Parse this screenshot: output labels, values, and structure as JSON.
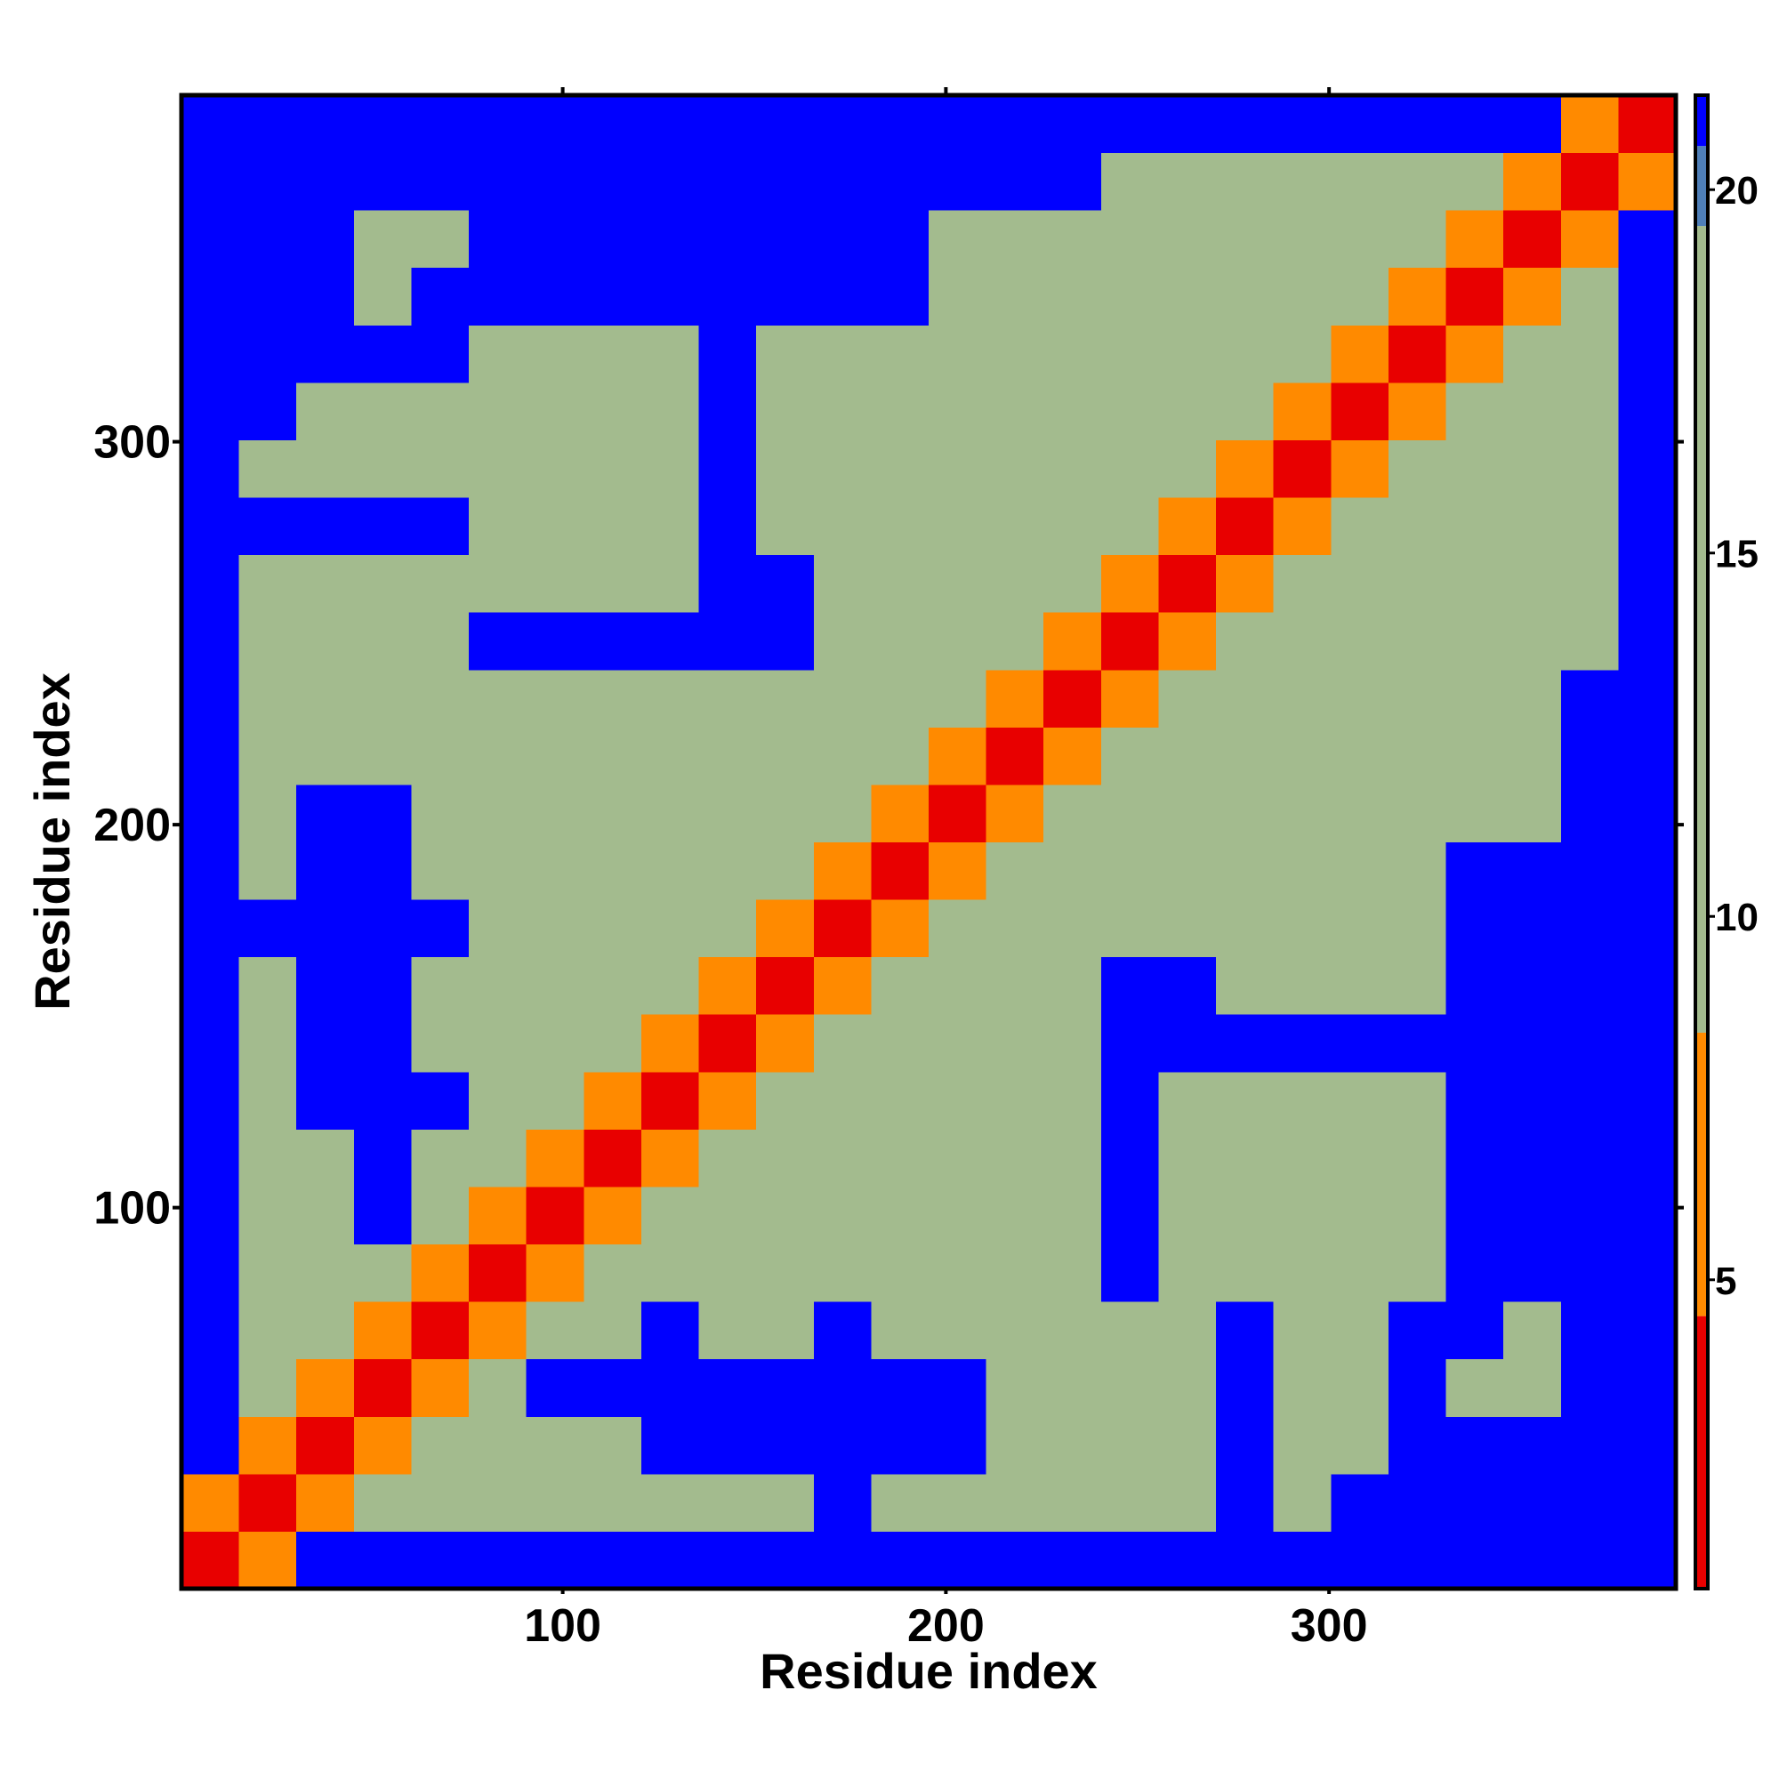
{
  "chart_data": {
    "type": "heatmap",
    "xlabel": "Residue index",
    "ylabel": "Residue index",
    "x": [
      8,
      23,
      38,
      53,
      68,
      83,
      98,
      113,
      128,
      143,
      158,
      173,
      188,
      203,
      218,
      233,
      248,
      263,
      278,
      293,
      308,
      323,
      338,
      353,
      368,
      383
    ],
    "y": [
      8,
      23,
      38,
      53,
      68,
      83,
      98,
      113,
      128,
      143,
      158,
      173,
      188,
      203,
      218,
      233,
      248,
      263,
      278,
      293,
      308,
      323,
      338,
      353,
      368,
      383
    ],
    "values": [
      [
        3,
        7,
        21,
        21,
        21,
        21,
        21,
        21,
        21,
        21,
        21,
        21,
        21,
        21,
        21,
        21,
        21,
        21,
        21,
        21,
        21,
        21,
        21,
        21,
        21,
        21
      ],
      [
        7,
        3,
        7,
        12,
        12,
        12,
        12,
        12,
        12,
        12,
        12,
        21,
        18,
        18,
        12,
        12,
        12,
        12,
        21,
        18,
        21,
        21,
        21,
        21,
        21,
        21
      ],
      [
        21,
        7,
        3,
        7,
        12,
        12,
        12,
        12,
        21,
        21,
        21,
        21,
        21,
        21,
        12,
        12,
        12,
        12,
        21,
        18,
        18,
        21,
        21,
        21,
        21,
        21
      ],
      [
        21,
        12,
        7,
        3,
        7,
        12,
        21,
        21,
        21,
        21,
        21,
        21,
        21,
        21,
        12,
        12,
        12,
        12,
        21,
        18,
        18,
        21,
        18,
        18,
        21,
        21
      ],
      [
        21,
        12,
        12,
        7,
        3,
        7,
        12,
        12,
        21,
        18,
        18,
        21,
        18,
        18,
        12,
        12,
        12,
        12,
        21,
        18,
        18,
        21,
        21,
        18,
        21,
        21
      ],
      [
        21,
        12,
        12,
        12,
        7,
        3,
        7,
        12,
        18,
        18,
        12,
        12,
        12,
        12,
        12,
        12,
        21,
        18,
        18,
        18,
        18,
        18,
        21,
        21,
        21,
        21
      ],
      [
        21,
        12,
        12,
        21,
        12,
        7,
        3,
        7,
        12,
        12,
        12,
        12,
        12,
        12,
        12,
        12,
        21,
        18,
        18,
        18,
        18,
        18,
        21,
        21,
        21,
        21
      ],
      [
        21,
        12,
        12,
        21,
        12,
        12,
        7,
        3,
        7,
        12,
        12,
        12,
        12,
        12,
        12,
        12,
        21,
        18,
        18,
        18,
        18,
        18,
        21,
        21,
        21,
        21
      ],
      [
        21,
        12,
        21,
        21,
        21,
        18,
        12,
        7,
        3,
        7,
        12,
        12,
        12,
        12,
        12,
        12,
        21,
        18,
        18,
        18,
        18,
        18,
        21,
        21,
        21,
        21
      ],
      [
        21,
        12,
        21,
        21,
        18,
        18,
        12,
        12,
        7,
        3,
        7,
        12,
        12,
        12,
        12,
        12,
        21,
        21,
        21,
        21,
        21,
        21,
        21,
        21,
        21,
        21
      ],
      [
        21,
        12,
        21,
        21,
        18,
        12,
        12,
        12,
        12,
        7,
        3,
        7,
        12,
        12,
        12,
        12,
        21,
        21,
        12,
        12,
        12,
        12,
        21,
        21,
        21,
        21
      ],
      [
        21,
        21,
        21,
        21,
        21,
        12,
        12,
        12,
        12,
        12,
        7,
        3,
        7,
        12,
        12,
        12,
        12,
        12,
        12,
        12,
        12,
        12,
        21,
        21,
        21,
        21
      ],
      [
        21,
        18,
        21,
        21,
        18,
        12,
        12,
        12,
        12,
        12,
        12,
        7,
        3,
        7,
        12,
        12,
        12,
        12,
        12,
        12,
        12,
        12,
        21,
        21,
        21,
        21
      ],
      [
        21,
        18,
        21,
        21,
        18,
        12,
        12,
        12,
        12,
        12,
        12,
        12,
        7,
        3,
        7,
        12,
        12,
        12,
        12,
        12,
        12,
        12,
        12,
        12,
        21,
        21
      ],
      [
        21,
        12,
        12,
        12,
        12,
        12,
        12,
        12,
        12,
        12,
        12,
        12,
        12,
        7,
        3,
        7,
        12,
        12,
        12,
        12,
        12,
        12,
        12,
        12,
        21,
        21
      ],
      [
        21,
        12,
        12,
        12,
        12,
        12,
        12,
        12,
        12,
        12,
        12,
        12,
        12,
        12,
        7,
        3,
        7,
        12,
        12,
        12,
        12,
        12,
        12,
        12,
        21,
        21
      ],
      [
        21,
        12,
        12,
        12,
        12,
        21,
        21,
        21,
        21,
        21,
        21,
        12,
        12,
        12,
        12,
        7,
        3,
        7,
        12,
        12,
        12,
        12,
        12,
        12,
        12,
        21
      ],
      [
        21,
        12,
        12,
        12,
        12,
        18,
        18,
        18,
        18,
        21,
        21,
        12,
        12,
        12,
        12,
        12,
        7,
        3,
        7,
        12,
        12,
        12,
        12,
        12,
        12,
        21
      ],
      [
        21,
        21,
        21,
        21,
        21,
        18,
        18,
        18,
        18,
        21,
        12,
        12,
        12,
        12,
        12,
        12,
        12,
        7,
        3,
        7,
        12,
        12,
        12,
        12,
        12,
        21
      ],
      [
        21,
        18,
        18,
        18,
        18,
        18,
        18,
        18,
        18,
        21,
        12,
        12,
        12,
        12,
        12,
        12,
        12,
        12,
        7,
        3,
        7,
        12,
        12,
        12,
        12,
        21
      ],
      [
        21,
        21,
        18,
        18,
        18,
        18,
        18,
        18,
        18,
        21,
        12,
        12,
        12,
        12,
        12,
        12,
        12,
        12,
        12,
        7,
        3,
        7,
        12,
        12,
        12,
        21
      ],
      [
        21,
        21,
        21,
        21,
        21,
        18,
        18,
        18,
        18,
        21,
        12,
        12,
        12,
        12,
        12,
        12,
        12,
        12,
        12,
        12,
        7,
        3,
        7,
        12,
        12,
        21
      ],
      [
        21,
        21,
        21,
        18,
        21,
        21,
        21,
        21,
        21,
        21,
        21,
        21,
        21,
        12,
        12,
        12,
        12,
        12,
        12,
        12,
        12,
        7,
        3,
        7,
        12,
        21
      ],
      [
        21,
        21,
        21,
        18,
        18,
        21,
        21,
        21,
        21,
        21,
        21,
        21,
        21,
        12,
        12,
        12,
        12,
        12,
        12,
        12,
        12,
        12,
        7,
        3,
        7,
        21
      ],
      [
        21,
        21,
        21,
        21,
        21,
        21,
        21,
        21,
        21,
        21,
        21,
        21,
        21,
        21,
        21,
        21,
        12,
        12,
        12,
        12,
        12,
        12,
        12,
        7,
        3,
        7
      ],
      [
        21,
        21,
        21,
        21,
        21,
        21,
        21,
        21,
        21,
        21,
        21,
        21,
        21,
        21,
        21,
        21,
        21,
        21,
        21,
        21,
        21,
        21,
        21,
        21,
        7,
        3
      ]
    ],
    "xlim": [
      0.5,
      390.5
    ],
    "ylim": [
      0.5,
      390.5
    ],
    "xticks": [
      100,
      200,
      300
    ],
    "yticks": [
      100,
      200,
      300
    ],
    "colorbar": {
      "clim": [
        0.75,
        21.3
      ],
      "ticks": [
        5,
        10,
        15,
        20
      ],
      "bands": [
        {
          "max": 4.5,
          "color": "#e80000"
        },
        {
          "max": 8.4,
          "color": "#ff8a00"
        },
        {
          "max": 19.5,
          "color": "#a3bb8e"
        },
        {
          "max": 20.6,
          "color": "#4f7fb8"
        },
        {
          "max": 21.3,
          "color": "#0000ff"
        }
      ]
    }
  }
}
